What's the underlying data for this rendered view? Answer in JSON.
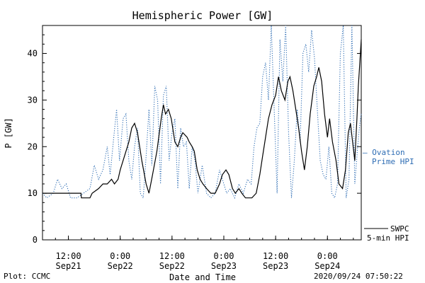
{
  "chart_data": {
    "type": "line",
    "title": "Hemispheric Power [GW]",
    "xlabel": "Date and Time",
    "ylabel": "P [GW]",
    "ylim": [
      0,
      46
    ],
    "xlim": [
      "2020-09-21T06:00",
      "2020-09-24T07:50"
    ],
    "yticks": [
      0,
      10,
      20,
      30,
      40
    ],
    "xticks": [
      {
        "at": "2020-09-21T12:00",
        "time": "12:00",
        "date": "Sep21"
      },
      {
        "at": "2020-09-22T00:00",
        "time": "0:00",
        "date": "Sep22"
      },
      {
        "at": "2020-09-22T12:00",
        "time": "12:00",
        "date": "Sep22"
      },
      {
        "at": "2020-09-23T00:00",
        "time": "0:00",
        "date": "Sep23"
      },
      {
        "at": "2020-09-23T12:00",
        "time": "12:00",
        "date": "Sep23"
      },
      {
        "at": "2020-09-24T00:00",
        "time": "0:00",
        "date": "Sep24"
      }
    ],
    "grid": false,
    "legend": "right",
    "series": [
      {
        "name": "SWPC 5-min HPI",
        "color": "#000000",
        "style": "solid",
        "points": [
          [
            "2020-09-21T06:00",
            10
          ],
          [
            "2020-09-21T14:55",
            10
          ],
          [
            "2020-09-21T15:00",
            9
          ],
          [
            "2020-09-21T17:00",
            9
          ],
          [
            "2020-09-21T17:30",
            10
          ],
          [
            "2020-09-21T19:00",
            11
          ],
          [
            "2020-09-21T20:00",
            12
          ],
          [
            "2020-09-21T21:00",
            12
          ],
          [
            "2020-09-21T22:00",
            13
          ],
          [
            "2020-09-21T22:40",
            12
          ],
          [
            "2020-09-21T23:30",
            13
          ],
          [
            "2020-09-22T00:00",
            15
          ],
          [
            "2020-09-22T01:00",
            18
          ],
          [
            "2020-09-22T02:00",
            21
          ],
          [
            "2020-09-22T02:40",
            24
          ],
          [
            "2020-09-22T03:20",
            25
          ],
          [
            "2020-09-22T04:00",
            23
          ],
          [
            "2020-09-22T05:00",
            17
          ],
          [
            "2020-09-22T06:00",
            12
          ],
          [
            "2020-09-22T06:40",
            10
          ],
          [
            "2020-09-22T07:30",
            14
          ],
          [
            "2020-09-22T08:30",
            19
          ],
          [
            "2020-09-22T09:30",
            26
          ],
          [
            "2020-09-22T10:00",
            29
          ],
          [
            "2020-09-22T10:30",
            27
          ],
          [
            "2020-09-22T11:10",
            28
          ],
          [
            "2020-09-22T11:50",
            26
          ],
          [
            "2020-09-22T12:40",
            21
          ],
          [
            "2020-09-22T13:20",
            20
          ],
          [
            "2020-09-22T14:00",
            22
          ],
          [
            "2020-09-22T14:30",
            23
          ],
          [
            "2020-09-22T15:30",
            22
          ],
          [
            "2020-09-22T16:00",
            21
          ],
          [
            "2020-09-22T16:40",
            20
          ],
          [
            "2020-09-22T17:10",
            19
          ],
          [
            "2020-09-22T17:50",
            15
          ],
          [
            "2020-09-22T18:30",
            13
          ],
          [
            "2020-09-22T19:10",
            12
          ],
          [
            "2020-09-22T20:00",
            11
          ],
          [
            "2020-09-22T21:00",
            10
          ],
          [
            "2020-09-22T22:00",
            10
          ],
          [
            "2020-09-22T23:00",
            12
          ],
          [
            "2020-09-22T23:40",
            14
          ],
          [
            "2020-09-23T00:30",
            15
          ],
          [
            "2020-09-23T01:10",
            14
          ],
          [
            "2020-09-23T02:00",
            11
          ],
          [
            "2020-09-23T02:40",
            10
          ],
          [
            "2020-09-23T03:30",
            11
          ],
          [
            "2020-09-23T04:10",
            10
          ],
          [
            "2020-09-23T05:00",
            9
          ],
          [
            "2020-09-23T06:30",
            9
          ],
          [
            "2020-09-23T07:30",
            10
          ],
          [
            "2020-09-23T08:20",
            14
          ],
          [
            "2020-09-23T09:00",
            18
          ],
          [
            "2020-09-23T09:40",
            22
          ],
          [
            "2020-09-23T10:20",
            26
          ],
          [
            "2020-09-23T11:10",
            29
          ],
          [
            "2020-09-23T12:00",
            31
          ],
          [
            "2020-09-23T12:40",
            35
          ],
          [
            "2020-09-23T13:20",
            32
          ],
          [
            "2020-09-23T14:10",
            30
          ],
          [
            "2020-09-23T14:50",
            34
          ],
          [
            "2020-09-23T15:20",
            35
          ],
          [
            "2020-09-23T16:00",
            32
          ],
          [
            "2020-09-23T16:40",
            28
          ],
          [
            "2020-09-23T17:20",
            24
          ],
          [
            "2020-09-23T18:00",
            19
          ],
          [
            "2020-09-23T18:40",
            15
          ],
          [
            "2020-09-23T19:20",
            20
          ],
          [
            "2020-09-23T20:00",
            27
          ],
          [
            "2020-09-23T20:50",
            33
          ],
          [
            "2020-09-23T21:30",
            35
          ],
          [
            "2020-09-23T22:00",
            37
          ],
          [
            "2020-09-23T22:40",
            34
          ],
          [
            "2020-09-23T23:20",
            27
          ],
          [
            "2020-09-24T00:00",
            22
          ],
          [
            "2020-09-24T00:30",
            26
          ],
          [
            "2020-09-24T01:10",
            21
          ],
          [
            "2020-09-24T02:00",
            17
          ],
          [
            "2020-09-24T02:40",
            12
          ],
          [
            "2020-09-24T03:30",
            11
          ],
          [
            "2020-09-24T04:10",
            15
          ],
          [
            "2020-09-24T04:50",
            23
          ],
          [
            "2020-09-24T05:20",
            25
          ],
          [
            "2020-09-24T05:50",
            21
          ],
          [
            "2020-09-24T06:20",
            17
          ],
          [
            "2020-09-24T06:50",
            26
          ],
          [
            "2020-09-24T07:10",
            33
          ],
          [
            "2020-09-24T07:30",
            38
          ],
          [
            "2020-09-24T07:50",
            43
          ]
        ]
      },
      {
        "name": "Ovation Prime HPI",
        "color": "#2e6db4",
        "style": "dotted",
        "points": [
          [
            "2020-09-21T06:00",
            10
          ],
          [
            "2020-09-21T07:00",
            9
          ],
          [
            "2020-09-21T08:30",
            10
          ],
          [
            "2020-09-21T09:30",
            13
          ],
          [
            "2020-09-21T10:30",
            11
          ],
          [
            "2020-09-21T11:30",
            12
          ],
          [
            "2020-09-21T12:30",
            9
          ],
          [
            "2020-09-21T14:00",
            9
          ],
          [
            "2020-09-21T15:30",
            10
          ],
          [
            "2020-09-21T17:00",
            11
          ],
          [
            "2020-09-21T18:00",
            16
          ],
          [
            "2020-09-21T19:00",
            13
          ],
          [
            "2020-09-21T20:00",
            15
          ],
          [
            "2020-09-21T21:00",
            20
          ],
          [
            "2020-09-21T21:40",
            14
          ],
          [
            "2020-09-21T22:30",
            22
          ],
          [
            "2020-09-21T23:10",
            28
          ],
          [
            "2020-09-21T23:50",
            17
          ],
          [
            "2020-09-22T00:40",
            26
          ],
          [
            "2020-09-22T01:20",
            27
          ],
          [
            "2020-09-22T02:00",
            17
          ],
          [
            "2020-09-22T02:40",
            13
          ],
          [
            "2020-09-22T03:20",
            20
          ],
          [
            "2020-09-22T04:00",
            24
          ],
          [
            "2020-09-22T04:40",
            10
          ],
          [
            "2020-09-22T05:20",
            9
          ],
          [
            "2020-09-22T06:00",
            18
          ],
          [
            "2020-09-22T06:40",
            28
          ],
          [
            "2020-09-22T07:20",
            16
          ],
          [
            "2020-09-22T08:00",
            33
          ],
          [
            "2020-09-22T08:40",
            30
          ],
          [
            "2020-09-22T09:20",
            12
          ],
          [
            "2020-09-22T10:00",
            31
          ],
          [
            "2020-09-22T10:40",
            33
          ],
          [
            "2020-09-22T11:20",
            17
          ],
          [
            "2020-09-22T12:00",
            23
          ],
          [
            "2020-09-22T12:40",
            26
          ],
          [
            "2020-09-22T13:20",
            11
          ],
          [
            "2020-09-22T14:00",
            24
          ],
          [
            "2020-09-22T14:40",
            20
          ],
          [
            "2020-09-22T15:20",
            21
          ],
          [
            "2020-09-22T16:00",
            11
          ],
          [
            "2020-09-22T16:40",
            20
          ],
          [
            "2020-09-22T17:20",
            17
          ],
          [
            "2020-09-22T18:00",
            10
          ],
          [
            "2020-09-22T19:00",
            16
          ],
          [
            "2020-09-22T20:00",
            10
          ],
          [
            "2020-09-22T21:00",
            9
          ],
          [
            "2020-09-22T22:00",
            10
          ],
          [
            "2020-09-22T23:00",
            15
          ],
          [
            "2020-09-23T00:00",
            12
          ],
          [
            "2020-09-23T00:40",
            10
          ],
          [
            "2020-09-23T01:30",
            11
          ],
          [
            "2020-09-23T02:30",
            9
          ],
          [
            "2020-09-23T03:30",
            12
          ],
          [
            "2020-09-23T04:30",
            10
          ],
          [
            "2020-09-23T05:30",
            13
          ],
          [
            "2020-09-23T06:20",
            12
          ],
          [
            "2020-09-23T07:00",
            20
          ],
          [
            "2020-09-23T07:40",
            24
          ],
          [
            "2020-09-23T08:20",
            25
          ],
          [
            "2020-09-23T09:00",
            35
          ],
          [
            "2020-09-23T09:40",
            38
          ],
          [
            "2020-09-23T10:20",
            30
          ],
          [
            "2020-09-23T11:00",
            46
          ],
          [
            "2020-09-23T11:40",
            28
          ],
          [
            "2020-09-23T12:20",
            10
          ],
          [
            "2020-09-23T13:00",
            43
          ],
          [
            "2020-09-23T13:40",
            34
          ],
          [
            "2020-09-23T14:20",
            46
          ],
          [
            "2020-09-23T15:00",
            23
          ],
          [
            "2020-09-23T15:40",
            9
          ],
          [
            "2020-09-23T16:20",
            17
          ],
          [
            "2020-09-23T17:00",
            28
          ],
          [
            "2020-09-23T17:40",
            21
          ],
          [
            "2020-09-23T18:20",
            40
          ],
          [
            "2020-09-23T19:00",
            42
          ],
          [
            "2020-09-23T19:40",
            36
          ],
          [
            "2020-09-23T20:20",
            45
          ],
          [
            "2020-09-23T21:00",
            39
          ],
          [
            "2020-09-23T21:40",
            28
          ],
          [
            "2020-09-23T22:20",
            17
          ],
          [
            "2020-09-23T23:00",
            14
          ],
          [
            "2020-09-23T23:40",
            13
          ],
          [
            "2020-09-24T00:20",
            20
          ],
          [
            "2020-09-24T01:00",
            10
          ],
          [
            "2020-09-24T01:40",
            9
          ],
          [
            "2020-09-24T02:20",
            12
          ],
          [
            "2020-09-24T03:00",
            40
          ],
          [
            "2020-09-24T03:40",
            46
          ],
          [
            "2020-09-24T04:20",
            9
          ],
          [
            "2020-09-24T05:00",
            13
          ],
          [
            "2020-09-24T05:40",
            46
          ],
          [
            "2020-09-24T06:20",
            12
          ],
          [
            "2020-09-24T07:00",
            20
          ],
          [
            "2020-09-24T07:30",
            25
          ],
          [
            "2020-09-24T07:50",
            27
          ]
        ]
      }
    ]
  },
  "legend": {
    "ovation_line1": "— Ovation",
    "ovation_line2": "Prime HPI",
    "swpc_line1": "SWPC",
    "swpc_line2": "5-min HPI"
  },
  "footer": {
    "left": "Plot: CCMC",
    "right": "2020/09/24 07:50:22"
  }
}
